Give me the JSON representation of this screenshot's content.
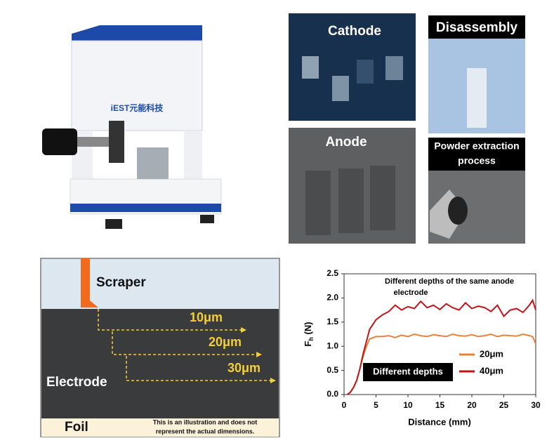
{
  "panels": {
    "cathode": "Cathode",
    "disassembly": "Disassembly",
    "anode": "Anode",
    "powder": [
      "Powder extraction",
      "process"
    ],
    "brand": "iEST元能科技"
  },
  "illustration": {
    "scraper": "Scraper",
    "electrode": "Electrode",
    "foil": "Foil",
    "depths": [
      "10μm",
      "20μm",
      "30μm"
    ],
    "note": [
      "This is an illustration and does not",
      "represent the actual dimensions."
    ]
  },
  "chart_data": {
    "type": "line",
    "title": [
      "Different depths of the same anode",
      "electrode"
    ],
    "annotation": "Different depths",
    "xlabel": "Distance (mm)",
    "ylabel": [
      "F",
      "h",
      " (N)"
    ],
    "x": [
      0.5,
      1,
      1.5,
      2,
      2.5,
      3,
      3.5,
      4,
      5,
      6,
      7,
      8,
      9,
      10,
      11,
      12,
      13,
      14,
      15,
      16,
      17,
      18,
      19,
      20,
      21,
      22,
      23,
      24,
      25,
      26,
      27,
      28,
      29,
      29.5,
      30
    ],
    "series": [
      {
        "name": "20μm",
        "color": "#e8823a",
        "values": [
          0,
          0.05,
          0.15,
          0.3,
          0.55,
          0.8,
          1.0,
          1.15,
          1.2,
          1.2,
          1.22,
          1.18,
          1.23,
          1.2,
          1.25,
          1.22,
          1.2,
          1.24,
          1.22,
          1.2,
          1.25,
          1.22,
          1.21,
          1.24,
          1.2,
          1.22,
          1.25,
          1.2,
          1.23,
          1.22,
          1.21,
          1.25,
          1.22,
          1.2,
          1.05
        ]
      },
      {
        "name": "40μm",
        "color": "#c0141a",
        "values": [
          0,
          0.05,
          0.15,
          0.3,
          0.55,
          0.85,
          1.1,
          1.35,
          1.55,
          1.65,
          1.72,
          1.85,
          1.75,
          1.82,
          1.78,
          1.93,
          1.8,
          1.85,
          1.76,
          1.88,
          1.8,
          1.75,
          1.9,
          1.78,
          1.83,
          1.8,
          1.72,
          1.85,
          1.62,
          1.75,
          1.78,
          1.7,
          1.85,
          1.95,
          1.75
        ]
      }
    ],
    "xlim": [
      0,
      30
    ],
    "xticks": [
      0,
      5,
      10,
      15,
      20,
      25,
      30
    ],
    "ylim": [
      0,
      2.5
    ],
    "yticks": [
      {
        "value": 0,
        "label": "0.0"
      },
      0.5,
      {
        "value": 1,
        "label": "1.0"
      },
      1.5,
      {
        "value": 2,
        "label": "2.0"
      },
      2.5
    ]
  }
}
